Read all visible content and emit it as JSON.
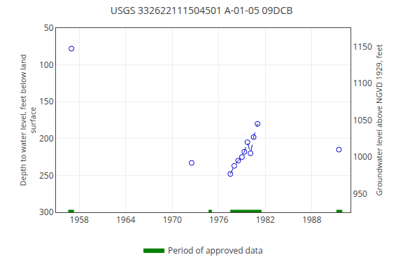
{
  "chart_data": {
    "type": "scatter",
    "title": "USGS 332622111504501 A-01-05 09DCB",
    "ylabel": "Depth to water level, feet below land\nsurface",
    "y2label": "Groundwater level above NGVD 1929, feet",
    "xlim": [
      1955.0,
      1993.0
    ],
    "xticks": [
      1958,
      1964,
      1970,
      1976,
      1982,
      1988
    ],
    "ylim": [
      300,
      50
    ],
    "yticks": [
      50,
      100,
      150,
      200,
      250,
      300
    ],
    "y2lim": [
      925,
      1175
    ],
    "y2ticks": [
      950,
      1000,
      1050,
      1100,
      1150
    ],
    "grid": true,
    "legend": "bottom",
    "series": [
      {
        "x": [
          1977.5,
          1978.0,
          1978.5,
          1979.0,
          1979.3,
          1979.7,
          1980.1,
          1980.5,
          1981.0
        ],
        "values": [
          248,
          237,
          230,
          225,
          218,
          205,
          220,
          198,
          180
        ],
        "color": "#0000CC",
        "marker": "open_circle",
        "line_style": "dashed"
      },
      {
        "x": [
          1957.0,
          1972.5,
          1991.5
        ],
        "values": [
          78,
          233,
          215
        ],
        "color": "#0000CC",
        "marker": "open_circle",
        "line_style": "none"
      }
    ],
    "periods": {
      "name": "Period of approved data",
      "color": "#008000",
      "start": [
        1956.6,
        1974.7,
        1977.5,
        1991.2
      ],
      "end": [
        1957.3,
        1975.1,
        1981.5,
        1991.9
      ]
    }
  }
}
